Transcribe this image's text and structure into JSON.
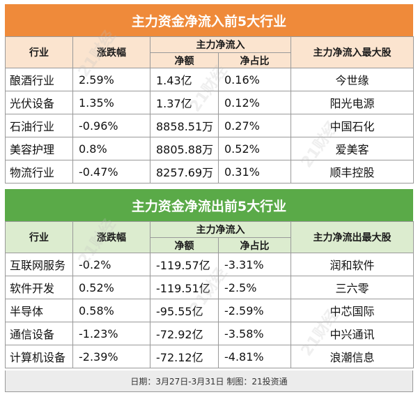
{
  "inflow": {
    "title": "主力资金净流入前5大行业",
    "headers": {
      "industry": "行业",
      "change": "涨跌幅",
      "group": "主力净流入",
      "net": "净额",
      "ratio": "净占比",
      "top_stock": "主力净流入最大股"
    },
    "rows": [
      {
        "industry": "酿酒行业",
        "change": "2.59%",
        "net": "1.43亿",
        "ratio": "0.16%",
        "stock": "今世缘"
      },
      {
        "industry": "光伏设备",
        "change": "1.35%",
        "net": "1.37亿",
        "ratio": "0.12%",
        "stock": "阳光电源"
      },
      {
        "industry": "石油行业",
        "change": "-0.96%",
        "net": "8858.51万",
        "ratio": "0.27%",
        "stock": "中国石化"
      },
      {
        "industry": "美容护理",
        "change": "0.8%",
        "net": "8805.88万",
        "ratio": "0.52%",
        "stock": "爱美客"
      },
      {
        "industry": "物流行业",
        "change": "-0.47%",
        "net": "8257.69万",
        "ratio": "0.31%",
        "stock": "顺丰控股"
      }
    ]
  },
  "outflow": {
    "title": "主力资金净流出前5大行业",
    "headers": {
      "industry": "行业",
      "change": "涨跌幅",
      "group": "主力净流入",
      "net": "净额",
      "ratio": "净占比",
      "top_stock": "主力净流出最大股"
    },
    "rows": [
      {
        "industry": "互联网服务",
        "change": "-0.2%",
        "net": "-119.57亿",
        "ratio": "-3.31%",
        "stock": "润和软件"
      },
      {
        "industry": "软件开发",
        "change": "0.52%",
        "net": "-119.51亿",
        "ratio": "-2.5%",
        "stock": "三六零"
      },
      {
        "industry": "半导体",
        "change": "0.58%",
        "net": "-95.55亿",
        "ratio": "-2.59%",
        "stock": "中芯国际"
      },
      {
        "industry": "通信设备",
        "change": "-1.23%",
        "net": "-72.92亿",
        "ratio": "-3.58%",
        "stock": "中兴通讯"
      },
      {
        "industry": "计算机设备",
        "change": "-2.39%",
        "net": "-72.12亿",
        "ratio": "-4.81%",
        "stock": "浪潮信息"
      }
    ]
  },
  "footer": "日期：3月27日-3月31日  制图：21投资通",
  "watermark": "21财经",
  "colors": {
    "inflow_title_bg": "#ef8a3a",
    "inflow_header_bg": "#fbe4cf",
    "outflow_title_bg": "#5aaa48",
    "outflow_header_bg": "#dceccf",
    "footer_bg": "#ececec"
  }
}
